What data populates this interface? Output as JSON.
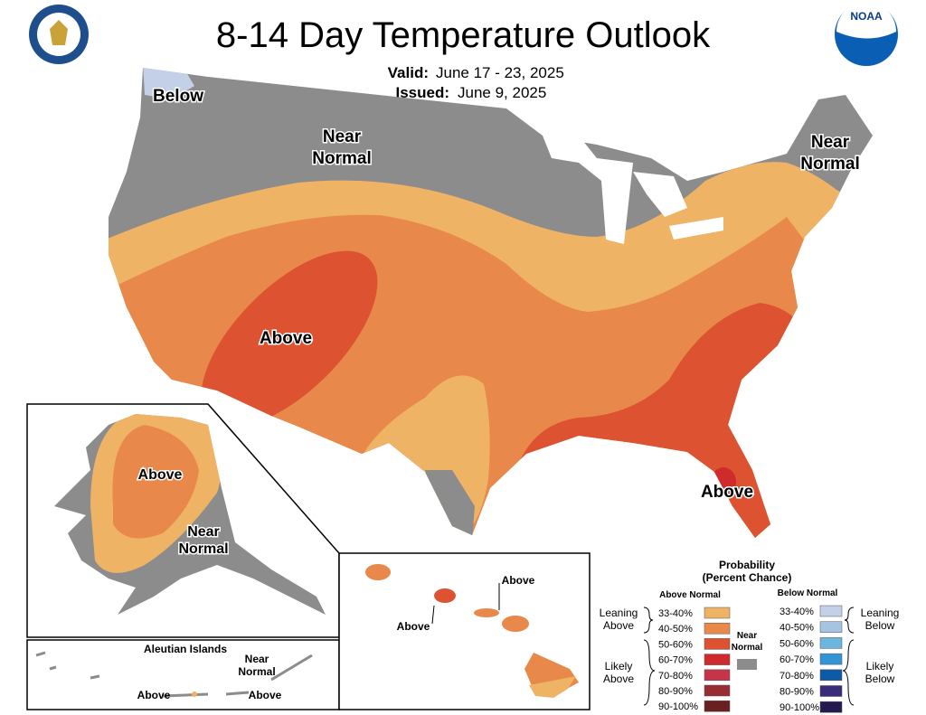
{
  "header": {
    "title": "8-14 Day Temperature Outlook",
    "valid_label": "Valid:",
    "valid_dates": "June 17 - 23, 2025",
    "issued_label": "Issued:",
    "issued_date": "June 9, 2025",
    "logo_text": "NOAA"
  },
  "map_labels": [
    {
      "lines": [
        "Below"
      ]
    },
    {
      "lines": [
        "Near",
        "Normal"
      ]
    },
    {
      "lines": [
        "Near",
        "Normal"
      ]
    },
    {
      "lines": [
        "Above"
      ]
    },
    {
      "lines": [
        "Above"
      ]
    }
  ],
  "alaska": {
    "labels": [
      {
        "lines": [
          "Above"
        ]
      },
      {
        "lines": [
          "Near",
          "Normal"
        ]
      }
    ]
  },
  "aleutians": {
    "title": "Aleutian Islands",
    "labels": [
      {
        "lines": [
          "Near",
          "Normal"
        ]
      },
      {
        "lines": [
          "Above"
        ]
      },
      {
        "lines": [
          "Above"
        ]
      }
    ]
  },
  "hawaii": {
    "labels": [
      {
        "lines": [
          "Above"
        ]
      },
      {
        "lines": [
          "Above"
        ]
      }
    ]
  },
  "legend": {
    "title": [
      "Probability",
      "(Percent Chance)"
    ],
    "above_heading": "Above Normal",
    "below_heading": "Below Normal",
    "near_normal": {
      "lines": [
        "Near",
        "Normal"
      ],
      "color": "#8c8c8c"
    },
    "above_items": [
      {
        "label": "33-40%",
        "color": "#efb366"
      },
      {
        "label": "40-50%",
        "color": "#e8894b"
      },
      {
        "label": "50-60%",
        "color": "#dd5331"
      },
      {
        "label": "60-70%",
        "color": "#cf2a2c"
      },
      {
        "label": "70-80%",
        "color": "#c7344a"
      },
      {
        "label": "80-90%",
        "color": "#992d34"
      },
      {
        "label": "90-100%",
        "color": "#6a2020"
      }
    ],
    "below_items": [
      {
        "label": "33-40%",
        "color": "#c3d0e8"
      },
      {
        "label": "40-50%",
        "color": "#a6c3e3"
      },
      {
        "label": "50-60%",
        "color": "#6cb5e1"
      },
      {
        "label": "60-70%",
        "color": "#3495d6"
      },
      {
        "label": "70-80%",
        "color": "#0d5aa6"
      },
      {
        "label": "80-90%",
        "color": "#3b2b7b"
      },
      {
        "label": "90-100%",
        "color": "#241a50"
      }
    ],
    "groups": [
      {
        "lines": [
          "Leaning",
          "Above"
        ]
      },
      {
        "lines": [
          "Likely",
          "Above"
        ]
      },
      {
        "lines": [
          "Leaning",
          "Below"
        ]
      },
      {
        "lines": [
          "Likely",
          "Below"
        ]
      }
    ]
  }
}
